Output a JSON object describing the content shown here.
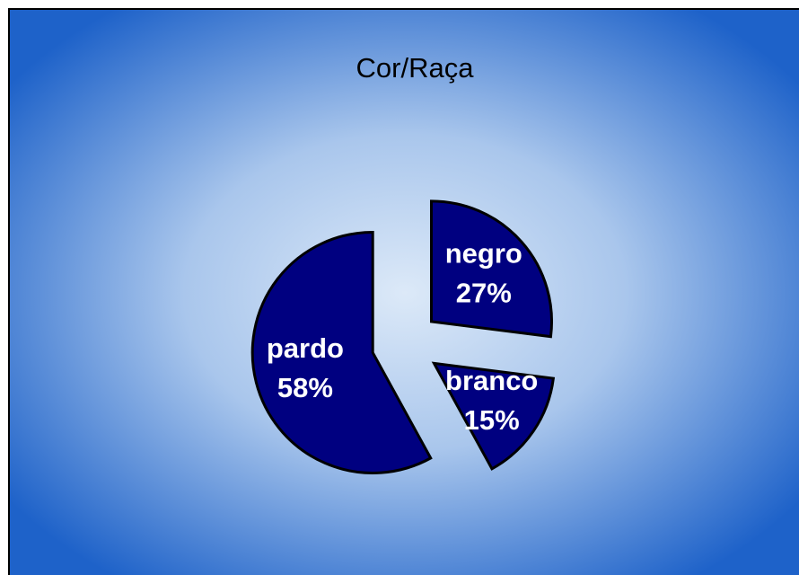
{
  "chart_data": {
    "type": "pie",
    "title": "Cor/Raça",
    "categories": [
      "negro",
      "branco",
      "pardo"
    ],
    "values": [
      27,
      15,
      58
    ],
    "value_labels": [
      "27%",
      "15%",
      "58%"
    ],
    "color": "#000080"
  }
}
